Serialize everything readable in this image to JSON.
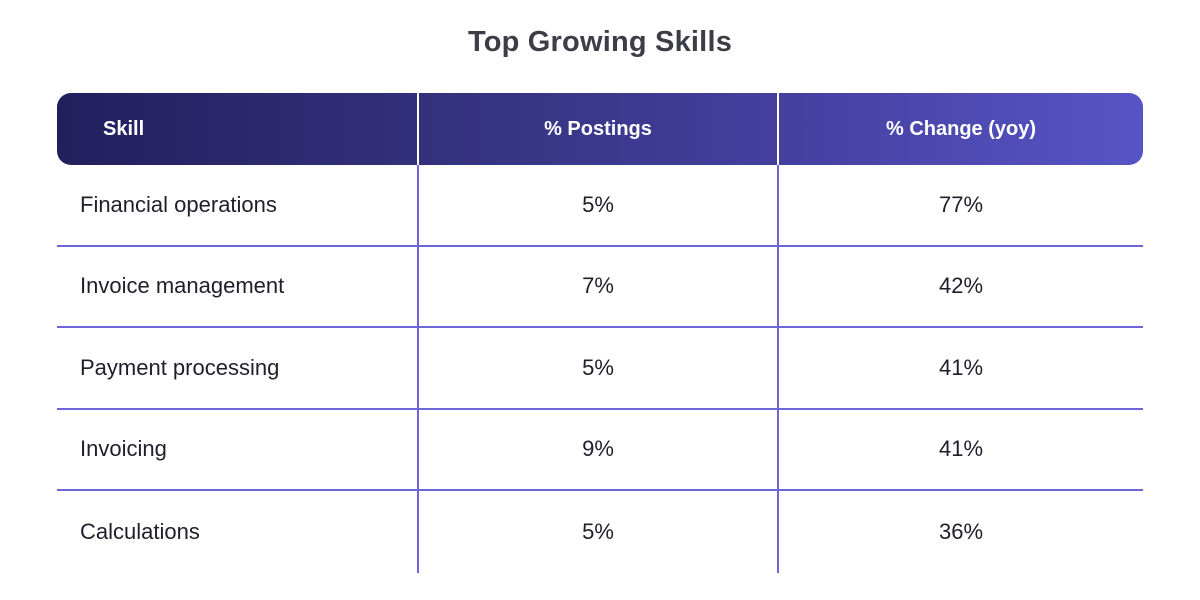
{
  "chart_data": {
    "type": "table",
    "title": "Top Growing Skills",
    "columns": [
      "Skill",
      "% Postings",
      "% Change (yoy)"
    ],
    "rows": [
      [
        "Financial operations",
        "5%",
        "77%"
      ],
      [
        "Invoice management",
        "7%",
        "42%"
      ],
      [
        "Payment processing",
        "5%",
        "41%"
      ],
      [
        "Invoicing",
        "9%",
        "41%"
      ],
      [
        "Calculations",
        "5%",
        "36%"
      ]
    ],
    "colors": {
      "header_gradient_start": "#211f5c",
      "header_gradient_end": "#5755c6",
      "row_divider": "#6b67d6"
    }
  }
}
